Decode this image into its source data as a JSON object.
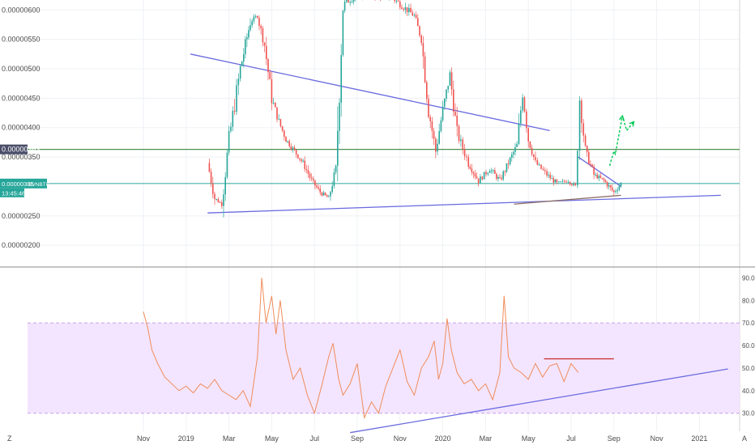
{
  "colors": {
    "up": "#26a69a",
    "down": "#ef5350",
    "trendline": "#6a6ae0",
    "level": "#2e7d32",
    "rsi": "#f08c5a",
    "rsi_band": "#f3e5ff",
    "projection": "#00c853",
    "support": "#8d6e63",
    "rsi_resistance": "#c62828"
  },
  "chart_data": [
    {
      "type": "candlestick",
      "symbol": "BVNBTC",
      "y_ticks": [
        "0.00000600",
        "0.00000550",
        "0.00000500",
        "0.00000450",
        "0.00000400",
        "0.00000350",
        "0.00000250",
        "0.00000200"
      ],
      "y_tick_values": [
        6.0,
        5.5,
        5.0,
        4.5,
        4.0,
        3.5,
        2.5,
        2.0
      ],
      "ylim": [
        1.7,
        6.1
      ],
      "price_badge": {
        "label": "0.00000305",
        "symbol": "BVNBTC",
        "countdown": "13:45:46",
        "value": 3.05
      },
      "level_badge": {
        "label": "0.00000363",
        "value": 3.63
      },
      "close_path": [
        [
          4.5,
          3.4
        ],
        [
          5,
          2.8
        ],
        [
          5.5,
          2.7
        ],
        [
          6,
          3.8
        ],
        [
          6.8,
          5.0
        ],
        [
          7.5,
          5.8
        ],
        [
          8,
          5.9
        ],
        [
          8.5,
          5.4
        ],
        [
          9,
          4.5
        ],
        [
          9.5,
          4.1
        ],
        [
          10,
          3.8
        ],
        [
          10.6,
          3.6
        ],
        [
          11.2,
          3.4
        ],
        [
          11.8,
          3.1
        ],
        [
          12.4,
          2.9
        ],
        [
          13,
          2.8
        ],
        [
          13.5,
          3.3
        ],
        [
          14,
          6.1
        ],
        [
          15.5,
          6.3
        ],
        [
          16.5,
          6.2
        ],
        [
          17.5,
          6.2
        ],
        [
          19,
          5.9
        ],
        [
          19.5,
          5.5
        ],
        [
          20,
          4.3
        ],
        [
          20.5,
          3.6
        ],
        [
          21,
          4.3
        ],
        [
          21.5,
          4.9
        ],
        [
          22,
          3.9
        ],
        [
          22.8,
          3.4
        ],
        [
          23.5,
          3.1
        ],
        [
          24.3,
          3.3
        ],
        [
          25,
          3.1
        ],
        [
          25.6,
          3.4
        ],
        [
          26.2,
          3.7
        ],
        [
          26.6,
          4.6
        ],
        [
          27,
          3.8
        ],
        [
          27.5,
          3.4
        ],
        [
          28.3,
          3.2
        ],
        [
          29,
          3.05
        ],
        [
          29.8,
          3.1
        ],
        [
          30.3,
          3.0
        ],
        [
          30.6,
          4.5
        ],
        [
          31,
          3.6
        ],
        [
          31.6,
          3.2
        ],
        [
          32.3,
          3.1
        ],
        [
          33,
          2.9
        ],
        [
          33.5,
          3.05
        ]
      ],
      "trend_lines": [
        {
          "from": [
            3.3,
            5.25
          ],
          "to": [
            28.5,
            3.95
          ],
          "color": "trendline"
        },
        {
          "from": [
            4.5,
            2.55
          ],
          "to": [
            40.5,
            2.85
          ],
          "color": "trendline"
        },
        {
          "from": [
            30.5,
            3.5
          ],
          "to": [
            33.5,
            3.0
          ],
          "color": "trendline"
        },
        {
          "from": [
            26,
            2.7
          ],
          "to": [
            33.5,
            2.85
          ],
          "color": "support"
        }
      ],
      "horizontal_levels": [
        {
          "value": 3.63,
          "color": "level"
        },
        {
          "value": 3.05,
          "color": "up"
        }
      ],
      "projection_path": [
        [
          32.7,
          3.35
        ],
        [
          33.0,
          3.6
        ],
        [
          33.1,
          3.55
        ],
        [
          33.6,
          4.2
        ],
        [
          33.9,
          3.95
        ],
        [
          34.4,
          4.1
        ]
      ]
    },
    {
      "type": "line",
      "indicator": "RSI",
      "y_ticks": [
        "90.00",
        "80.00",
        "70.00",
        "60.00",
        "50.00",
        "40.00",
        "30.00"
      ],
      "y_tick_values": [
        90,
        80,
        70,
        60,
        50,
        40,
        30
      ],
      "ylim": [
        22,
        93
      ],
      "band": [
        30,
        70
      ],
      "rsi_path": [
        [
          0,
          75
        ],
        [
          0.3,
          68
        ],
        [
          0.6,
          58
        ],
        [
          1,
          52
        ],
        [
          1.5,
          46
        ],
        [
          2,
          43
        ],
        [
          2.5,
          40
        ],
        [
          3,
          42
        ],
        [
          3.5,
          39
        ],
        [
          4,
          43
        ],
        [
          4.5,
          41
        ],
        [
          5,
          45
        ],
        [
          5.5,
          40
        ],
        [
          6,
          38
        ],
        [
          6.5,
          36
        ],
        [
          7,
          40
        ],
        [
          7.5,
          33
        ],
        [
          8,
          55
        ],
        [
          8.3,
          90
        ],
        [
          8.6,
          70
        ],
        [
          9,
          82
        ],
        [
          9.3,
          65
        ],
        [
          9.6,
          80
        ],
        [
          10,
          58
        ],
        [
          10.5,
          45
        ],
        [
          11,
          50
        ],
        [
          11.5,
          38
        ],
        [
          12,
          30
        ],
        [
          12.5,
          42
        ],
        [
          13,
          55
        ],
        [
          13.3,
          61
        ],
        [
          13.7,
          45
        ],
        [
          14,
          38
        ],
        [
          14.5,
          43
        ],
        [
          15,
          52
        ],
        [
          15.5,
          28
        ],
        [
          16,
          35
        ],
        [
          16.5,
          30
        ],
        [
          17,
          42
        ],
        [
          17.5,
          50
        ],
        [
          18,
          58
        ],
        [
          18.5,
          44
        ],
        [
          19,
          38
        ],
        [
          19.5,
          50
        ],
        [
          20,
          55
        ],
        [
          20.4,
          62
        ],
        [
          20.7,
          45
        ],
        [
          21,
          52
        ],
        [
          21.3,
          72
        ],
        [
          21.6,
          58
        ],
        [
          22,
          48
        ],
        [
          22.5,
          43
        ],
        [
          23,
          45
        ],
        [
          23.5,
          40
        ],
        [
          24,
          43
        ],
        [
          24.5,
          36
        ],
        [
          25,
          48
        ],
        [
          25.3,
          82
        ],
        [
          25.6,
          55
        ],
        [
          26,
          50
        ],
        [
          26.5,
          48
        ],
        [
          27,
          45
        ],
        [
          27.5,
          52
        ],
        [
          28,
          46
        ],
        [
          28.5,
          51
        ],
        [
          29,
          52
        ],
        [
          29.5,
          44
        ],
        [
          30,
          52
        ],
        [
          30.5,
          48
        ]
      ],
      "trend_lines": [
        {
          "from": [
            14.5,
            21.4
          ],
          "to": [
            41,
            49.6
          ],
          "color": "trendline"
        },
        {
          "from": [
            28.1,
            54.1
          ],
          "to": [
            33,
            54.1
          ],
          "color": "rsi_resistance"
        }
      ],
      "x_ticks": [
        "Nov",
        "2019",
        "Mar",
        "May",
        "Jul",
        "Sep",
        "Nov",
        "2020",
        "Mar",
        "May",
        "Jul",
        "Sep",
        "Nov",
        "2021"
      ],
      "x_tick_values": [
        0,
        3,
        6,
        9,
        12,
        15,
        18,
        21,
        24,
        27,
        30,
        33,
        36,
        39
      ]
    }
  ],
  "footer": {
    "left_label": "Z",
    "right_label": "A"
  }
}
